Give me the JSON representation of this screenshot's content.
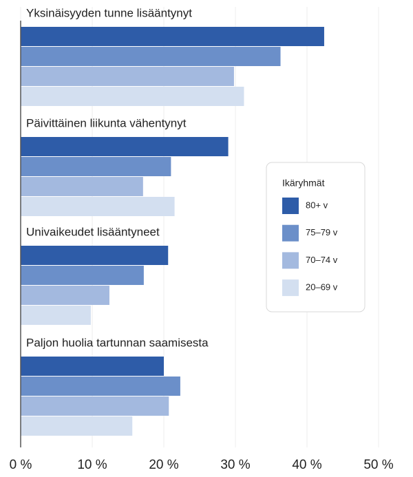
{
  "chart_data": {
    "type": "bar",
    "orientation": "horizontal",
    "categories": [
      "Yksinäisyyden tunne lisääntynyt",
      "Päivittäinen liikunta vähentynyt",
      "Univaikeudet lisääntyneet",
      "Paljon huolia tartunnan saamisesta"
    ],
    "series": [
      {
        "name": "80+ v",
        "color": "#2e5ca8",
        "values": [
          42.4,
          29.0,
          20.6,
          20.0
        ]
      },
      {
        "name": "75–79 v",
        "color": "#6b8fc9",
        "values": [
          36.3,
          21.0,
          17.2,
          22.3
        ]
      },
      {
        "name": "70–74 v",
        "color": "#a3b9df",
        "values": [
          29.8,
          17.1,
          12.4,
          20.7
        ]
      },
      {
        "name": "20–69 v",
        "color": "#d3dff0",
        "values": [
          31.2,
          21.5,
          9.8,
          15.6
        ]
      }
    ],
    "legend_title": "Ikäryhmät",
    "xlim": [
      0,
      50
    ],
    "xticks": [
      {
        "value": 0,
        "label": "0 %"
      },
      {
        "value": 10,
        "label": "10 %"
      },
      {
        "value": 20,
        "label": "20 %"
      },
      {
        "value": 30,
        "label": "30 %"
      },
      {
        "value": 40,
        "label": "40 %"
      },
      {
        "value": 50,
        "label": "50 %"
      }
    ],
    "grid": true
  }
}
